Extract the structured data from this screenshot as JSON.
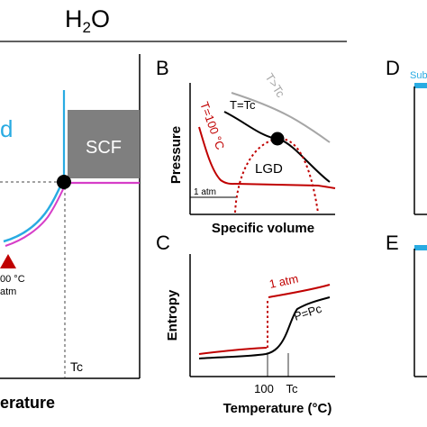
{
  "header": {
    "title_main": "H",
    "title_sub": "2",
    "title_end": "O"
  },
  "panel_a": {
    "label_partial": "d",
    "scf_label": "SCF",
    "triple_point_label_1": "00 °C",
    "triple_point_label_2": "atm",
    "tc_label": "Tc",
    "xaxis_partial": "erature"
  },
  "panel_b": {
    "letter": "B",
    "ylabel": "Pressure",
    "xlabel": "Specific volume",
    "curve_t_gt_tc": "T>Tc",
    "curve_t_eq_tc": "T=Tc",
    "curve_t_100": "T=100 °C",
    "dome_label": "LGD",
    "pressure_ref": "1 atm"
  },
  "panel_c": {
    "letter": "C",
    "ylabel": "Entropy",
    "xlabel": "Temperature (°C)",
    "curve_1atm": "1 atm",
    "curve_pc": "P=Pc",
    "tick_100": "100",
    "tick_tc": "Tc"
  },
  "panel_d": {
    "letter": "D",
    "label_partial": "Sub"
  },
  "panel_e": {
    "letter": "E"
  },
  "colors": {
    "red": "#c00000",
    "black": "#000000",
    "gray": "#a6a6a6",
    "blue": "#29abe2",
    "magenta": "#d63ec8",
    "scf_box": "#7f7f7f"
  }
}
